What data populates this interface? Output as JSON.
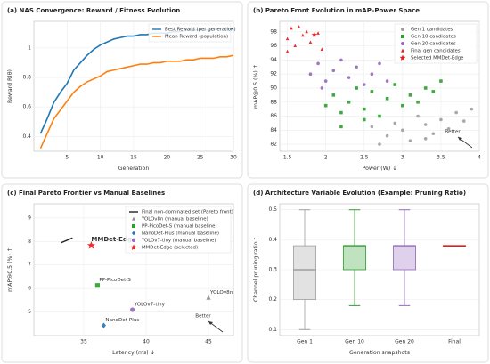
{
  "chart_data": [
    {
      "type": "line",
      "title": "(a) NAS Convergence: Reward / Fitness Evolution",
      "x_label": "Generation",
      "y_label": "Reward R(θ)",
      "x": [
        1,
        2,
        3,
        4,
        5,
        6,
        7,
        8,
        9,
        10,
        11,
        12,
        13,
        14,
        15,
        16,
        17,
        18,
        19,
        20,
        21,
        22,
        23,
        24,
        25,
        26,
        27,
        28,
        29,
        30
      ],
      "series": [
        {
          "name": "Best Reward (per generation)",
          "color": "#1f77b4",
          "values": [
            0.42,
            0.52,
            0.63,
            0.7,
            0.76,
            0.85,
            0.9,
            0.95,
            0.99,
            1.02,
            1.04,
            1.06,
            1.07,
            1.08,
            1.08,
            1.09,
            1.09,
            1.1,
            1.1,
            1.1,
            1.11,
            1.11,
            1.12,
            1.12,
            1.12,
            1.12,
            1.12,
            1.13,
            1.13,
            1.13
          ]
        },
        {
          "name": "Mean Reward (population)",
          "color": "#ff7f0e",
          "values": [
            0.32,
            0.42,
            0.52,
            0.58,
            0.64,
            0.7,
            0.74,
            0.77,
            0.79,
            0.81,
            0.84,
            0.85,
            0.86,
            0.87,
            0.88,
            0.89,
            0.89,
            0.9,
            0.9,
            0.91,
            0.91,
            0.91,
            0.92,
            0.92,
            0.93,
            0.93,
            0.93,
            0.94,
            0.94,
            0.95
          ]
        }
      ],
      "xlim": [
        0,
        30
      ],
      "xticks": [
        5,
        10,
        15,
        20,
        25,
        30
      ],
      "ylim": [
        0.3,
        1.18
      ],
      "yticks": [
        0.4,
        0.6,
        0.8,
        1
      ],
      "grid": true,
      "legend": "upper right"
    },
    {
      "type": "scatter",
      "title": "(b) Pareto Front Evolution in mAP–Power Space",
      "x_label": "Power (W) ↓",
      "y_label": "mAP@0.5 (%) ↑",
      "series": [
        {
          "name": "Gen 1 candidates",
          "color": "#9e9e9e",
          "marker": "circle",
          "x": [
            2.6,
            2.8,
            2.9,
            3.0,
            3.1,
            3.2,
            3.3,
            3.4,
            3.5,
            3.6,
            3.7,
            3.8,
            3.9,
            2.7,
            3.3
          ],
          "values": [
            84.5,
            83.2,
            85,
            84,
            82.5,
            86,
            84.8,
            83.5,
            85.5,
            84.2,
            86.5,
            85.3,
            87,
            82,
            82.8
          ]
        },
        {
          "name": "Gen 10 candidates",
          "color": "#2ca02c",
          "marker": "square",
          "x": [
            2.0,
            2.1,
            2.2,
            2.3,
            2.4,
            2.5,
            2.6,
            2.7,
            2.8,
            2.9,
            3.0,
            3.1,
            3.2,
            3.3,
            3.4,
            3.5,
            2.5,
            2.2
          ],
          "values": [
            87.5,
            89,
            86.5,
            88,
            90,
            87,
            89.5,
            86,
            88.5,
            90.5,
            87.5,
            89,
            88,
            90,
            89.5,
            91,
            85.5,
            84.5
          ]
        },
        {
          "name": "Gen 20 candidates",
          "color": "#9467bd",
          "marker": "circle",
          "x": [
            1.8,
            1.9,
            2.0,
            2.1,
            2.2,
            2.3,
            2.4,
            2.5,
            2.6,
            2.7,
            1.95,
            2.8
          ],
          "values": [
            92,
            93.5,
            91,
            92.5,
            94,
            91.5,
            93,
            90.5,
            92,
            93.5,
            90,
            91
          ]
        },
        {
          "name": "Final gen candidates",
          "color": "#e41a1c",
          "marker": "triangle",
          "x": [
            1.5,
            1.55,
            1.6,
            1.7,
            1.75,
            1.8,
            1.9,
            1.95,
            1.5,
            1.65
          ],
          "values": [
            97,
            98.5,
            96,
            97.5,
            98,
            96.5,
            97.8,
            95.5,
            95.2,
            98.7
          ]
        },
        {
          "name": "Selected MMDet-Edge",
          "color": "#e41a1c",
          "marker": "star",
          "x": [
            1.85
          ],
          "values": [
            97.6
          ]
        }
      ],
      "annotations": [
        "Better"
      ],
      "xlim": [
        1.4,
        4
      ],
      "xticks": [
        1.5,
        2,
        2.5,
        3,
        3.5,
        4
      ],
      "ylim": [
        81,
        99.5
      ],
      "yticks": [
        82,
        84,
        86,
        88,
        90,
        92,
        94,
        96,
        98
      ],
      "grid": true,
      "legend": "upper right"
    },
    {
      "type": "scatter",
      "title": "(c) Final Pareto Frontier vs Manual Baselines",
      "x_label": "Latency (ms) ↓",
      "y_label": "mAP@0.5 (%) ↑",
      "series": [
        {
          "name": "Final non-dominated set (Pareto front)",
          "color": "#222222",
          "mode": "line",
          "x": [
            33.2,
            34.1
          ],
          "values": [
            7.95,
            8.15
          ]
        },
        {
          "name": "YOLOv8n (manual baseline)",
          "label": "YOLOv8n",
          "color": "#8c8c8c",
          "marker": "triangle",
          "x": [
            45
          ],
          "values": [
            5.6
          ]
        },
        {
          "name": "PP-PicoDet-S (manual baseline)",
          "label": "PP-PicoDet-S",
          "color": "#2ca02c",
          "marker": "square",
          "x": [
            36.1
          ],
          "values": [
            6.13
          ]
        },
        {
          "name": "NanoDet-Plus (manual baseline)",
          "label": "NanoDet-Plus",
          "color": "#1f77b4",
          "marker": "diamond",
          "x": [
            36.6
          ],
          "values": [
            4.43
          ]
        },
        {
          "name": "YOLOv7-tiny (manual baseline)",
          "label": "YOLOv7-tiny",
          "color": "#9467bd",
          "marker": "circle",
          "x": [
            38.9
          ],
          "values": [
            5.1
          ]
        },
        {
          "name": "MMDet-Edge (selected)",
          "label": "MMDet-Edge",
          "color": "#e41a1c",
          "marker": "star",
          "x": [
            35.6
          ],
          "values": [
            7.83
          ]
        }
      ],
      "annotations": [
        "Better"
      ],
      "xlim": [
        31,
        47
      ],
      "xticks": [
        35,
        40,
        45
      ],
      "ylim": [
        4.0,
        9.6
      ],
      "yticks": [
        5,
        6,
        7,
        8,
        9
      ],
      "grid": true,
      "legend": "upper right"
    },
    {
      "type": "box",
      "title": "(d) Architecture Variable Evolution (Example: Pruning Ratio)",
      "x_label": "Generation snapshots",
      "y_label": "Channel pruning ratio r",
      "categories": [
        "Gen 1",
        "Gen 10",
        "Gen 20",
        "Final"
      ],
      "colors": [
        "#9e9e9e",
        "#2ca02c",
        "#9467bd",
        "#e41a1c"
      ],
      "boxes": [
        {
          "min": 0.1,
          "q1": 0.2,
          "median": 0.3,
          "q3": 0.38,
          "max": 0.5
        },
        {
          "min": 0.18,
          "q1": 0.3,
          "median": 0.38,
          "q3": 0.38,
          "max": 0.5
        },
        {
          "min": 0.18,
          "q1": 0.3,
          "median": 0.38,
          "q3": 0.38,
          "max": 0.5
        },
        {
          "min": 0.38,
          "q1": 0.38,
          "median": 0.38,
          "q3": 0.38,
          "max": 0.38
        }
      ],
      "ylim": [
        0.08,
        0.52
      ],
      "yticks": [
        0.1,
        0.2,
        0.3,
        0.4,
        0.5
      ],
      "grid": true
    }
  ]
}
